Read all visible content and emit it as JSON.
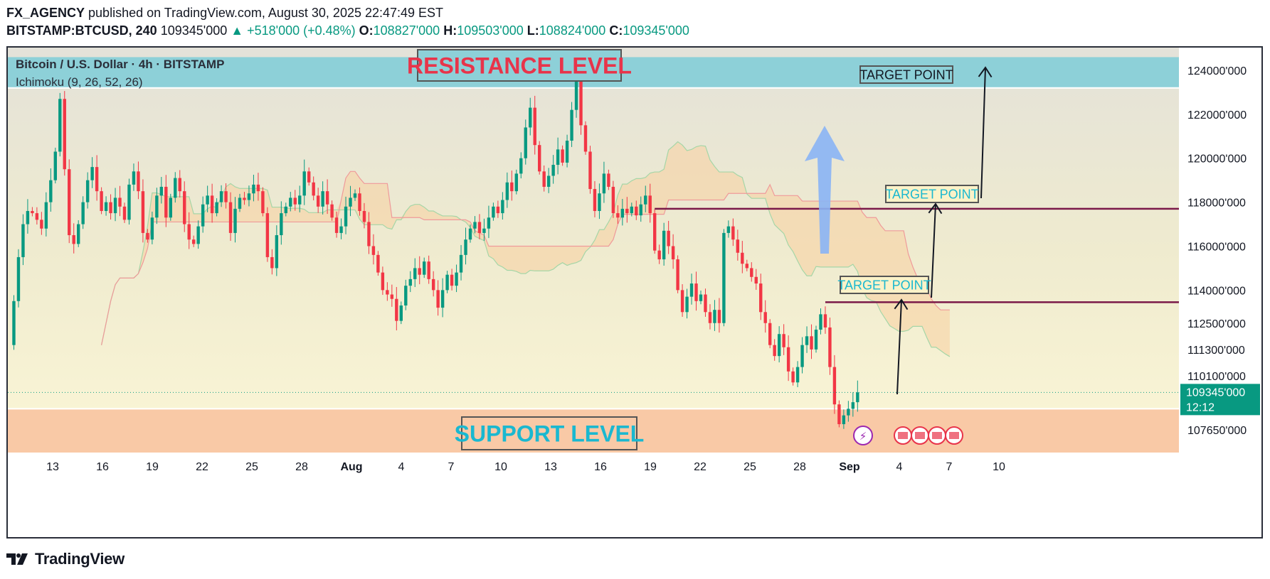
{
  "header": {
    "author": "FX_AGENCY",
    "published": " published on TradingView.com, August 30, 2025 22:47:49 EST",
    "symbol": "BITSTAMP:BTCUSD, 240",
    "last_price": "109345'000",
    "change": "▲ +518'000 (+0.48%)",
    "open_label": "O:",
    "open": "108827'000",
    "high_label": "H:",
    "high": "109503'000",
    "low_label": "L:",
    "low": "108824'000",
    "close_label": "C:",
    "close": "109345'000"
  },
  "legend": {
    "title": "Bitcoin / U.S. Dollar · 4h · BITSTAMP",
    "indicator": "Ichimoku (9, 26, 52, 26)"
  },
  "footer": {
    "brand": "TradingView"
  },
  "colors": {
    "up": "#089981",
    "down": "#f23645",
    "resistance_zone": "#8dd0d8",
    "support_zone": "#f9c9a6",
    "level_line": "#7a1848",
    "arrow_blue": "#8ab4f5",
    "price_tag": "#089981"
  },
  "chart_data": {
    "type": "candlestick",
    "symbol": "BITSTAMP:BTCUSD",
    "timeframe": "4h",
    "price_axis_ticks": [
      124000,
      122000,
      120000,
      118000,
      116000,
      114000,
      112500,
      111300,
      110100,
      107650
    ],
    "price_axis_labels": [
      "124000'000",
      "122000'000",
      "120000'000",
      "118000'000",
      "116000'000",
      "114000'000",
      "112500'000",
      "111300'000",
      "110100'000",
      "107650'000"
    ],
    "time_axis_labels": [
      "13",
      "16",
      "19",
      "22",
      "25",
      "28",
      "Aug",
      "4",
      "7",
      "10",
      "13",
      "16",
      "19",
      "22",
      "25",
      "28",
      "Sep",
      "4",
      "7",
      "10"
    ],
    "current_price_label": "109345'000",
    "countdown": "12:12",
    "price_path": [
      [
        0,
        111500
      ],
      [
        1,
        113500
      ],
      [
        2,
        115500
      ],
      [
        3,
        117000
      ],
      [
        4,
        117600
      ],
      [
        5,
        117500
      ],
      [
        6,
        117200
      ],
      [
        7,
        116800
      ],
      [
        8,
        118000
      ],
      [
        9,
        119000
      ],
      [
        10,
        120300
      ],
      [
        11,
        122700
      ],
      [
        12,
        119500
      ],
      [
        13,
        116500
      ],
      [
        14,
        116100
      ],
      [
        15,
        117000
      ],
      [
        16,
        118000
      ],
      [
        17,
        119000
      ],
      [
        18,
        119600
      ],
      [
        19,
        118500
      ],
      [
        20,
        117600
      ],
      [
        21,
        118000
      ],
      [
        22,
        117500
      ],
      [
        23,
        118200
      ],
      [
        24,
        117800
      ],
      [
        25,
        117200
      ],
      [
        26,
        118800
      ],
      [
        27,
        119400
      ],
      [
        28,
        118500
      ],
      [
        29,
        116600
      ],
      [
        30,
        116300
      ],
      [
        31,
        117300
      ],
      [
        32,
        118300
      ],
      [
        33,
        118700
      ],
      [
        34,
        117300
      ],
      [
        35,
        118200
      ],
      [
        36,
        119100
      ],
      [
        37,
        118500
      ],
      [
        38,
        117000
      ],
      [
        39,
        116300
      ],
      [
        40,
        116100
      ],
      [
        41,
        116900
      ],
      [
        42,
        117900
      ],
      [
        43,
        118300
      ],
      [
        44,
        117500
      ],
      [
        45,
        118000
      ],
      [
        46,
        118500
      ],
      [
        47,
        118000
      ],
      [
        48,
        116600
      ],
      [
        49,
        117700
      ],
      [
        50,
        118200
      ],
      [
        51,
        118100
      ],
      [
        52,
        118400
      ],
      [
        53,
        118800
      ],
      [
        54,
        118500
      ],
      [
        55,
        117500
      ],
      [
        56,
        115500
      ],
      [
        57,
        115000
      ],
      [
        58,
        116500
      ],
      [
        59,
        117500
      ],
      [
        60,
        117800
      ],
      [
        61,
        118200
      ],
      [
        62,
        117900
      ],
      [
        63,
        118300
      ],
      [
        64,
        119400
      ],
      [
        65,
        118900
      ],
      [
        66,
        118300
      ],
      [
        67,
        117800
      ],
      [
        68,
        118500
      ],
      [
        69,
        117900
      ],
      [
        70,
        117300
      ],
      [
        71,
        116600
      ],
      [
        72,
        116900
      ],
      [
        73,
        117800
      ],
      [
        74,
        118200
      ],
      [
        75,
        118400
      ],
      [
        76,
        117600
      ],
      [
        77,
        117100
      ],
      [
        78,
        116000
      ],
      [
        79,
        115600
      ],
      [
        80,
        114800
      ],
      [
        81,
        114000
      ],
      [
        82,
        113800
      ],
      [
        83,
        113600
      ],
      [
        84,
        112600
      ],
      [
        85,
        113300
      ],
      [
        86,
        114200
      ],
      [
        87,
        114500
      ],
      [
        88,
        115000
      ],
      [
        89,
        114700
      ],
      [
        90,
        115300
      ],
      [
        91,
        114500
      ],
      [
        92,
        114000
      ],
      [
        93,
        113200
      ],
      [
        94,
        114000
      ],
      [
        95,
        114700
      ],
      [
        96,
        114200
      ],
      [
        97,
        114800
      ],
      [
        98,
        115600
      ],
      [
        99,
        116300
      ],
      [
        100,
        116800
      ],
      [
        101,
        117100
      ],
      [
        102,
        116600
      ],
      [
        103,
        116800
      ],
      [
        104,
        117300
      ],
      [
        105,
        117800
      ],
      [
        106,
        117500
      ],
      [
        107,
        118100
      ],
      [
        108,
        118900
      ],
      [
        109,
        118500
      ],
      [
        110,
        119300
      ],
      [
        111,
        120000
      ],
      [
        112,
        121400
      ],
      [
        113,
        122300
      ],
      [
        114,
        120600
      ],
      [
        115,
        119400
      ],
      [
        116,
        118700
      ],
      [
        117,
        119200
      ],
      [
        118,
        119700
      ],
      [
        119,
        120400
      ],
      [
        120,
        119800
      ],
      [
        121,
        120800
      ],
      [
        122,
        122200
      ],
      [
        123,
        123600
      ],
      [
        124,
        121500
      ],
      [
        125,
        120300
      ],
      [
        126,
        118600
      ],
      [
        127,
        117600
      ],
      [
        128,
        118400
      ],
      [
        129,
        119300
      ],
      [
        130,
        118700
      ],
      [
        131,
        117500
      ],
      [
        132,
        117300
      ],
      [
        133,
        117700
      ],
      [
        134,
        117500
      ],
      [
        135,
        117800
      ],
      [
        136,
        117400
      ],
      [
        137,
        117900
      ],
      [
        138,
        118300
      ],
      [
        139,
        117500
      ],
      [
        140,
        115800
      ],
      [
        141,
        115400
      ],
      [
        142,
        116700
      ],
      [
        143,
        116000
      ],
      [
        144,
        115400
      ],
      [
        145,
        114000
      ],
      [
        146,
        113000
      ],
      [
        147,
        113700
      ],
      [
        148,
        114300
      ],
      [
        149,
        113500
      ],
      [
        150,
        113800
      ],
      [
        151,
        113000
      ],
      [
        152,
        112500
      ],
      [
        153,
        113100
      ],
      [
        154,
        112500
      ],
      [
        155,
        116600
      ],
      [
        156,
        116900
      ],
      [
        157,
        116300
      ],
      [
        158,
        115700
      ],
      [
        159,
        115200
      ],
      [
        160,
        115000
      ],
      [
        161,
        114600
      ],
      [
        162,
        114300
      ],
      [
        163,
        113000
      ],
      [
        164,
        112500
      ],
      [
        165,
        111500
      ],
      [
        166,
        111000
      ],
      [
        167,
        112000
      ],
      [
        168,
        111400
      ],
      [
        169,
        110300
      ],
      [
        170,
        109800
      ],
      [
        171,
        110500
      ],
      [
        172,
        111500
      ],
      [
        173,
        111900
      ],
      [
        174,
        111300
      ],
      [
        175,
        112200
      ],
      [
        176,
        112900
      ],
      [
        177,
        112300
      ],
      [
        178,
        110500
      ],
      [
        179,
        108800
      ],
      [
        180,
        107900
      ],
      [
        181,
        108300
      ],
      [
        182,
        108600
      ],
      [
        183,
        108900
      ],
      [
        184,
        109345
      ]
    ],
    "zones": [
      {
        "label": "RESISTANCE LEVEL",
        "from": 123200,
        "to": 124600
      },
      {
        "label": "SUPPORT LEVEL",
        "from": 106800,
        "to": 108600
      }
    ],
    "levels": [
      {
        "price": 117700,
        "from_bar": 140
      },
      {
        "price": 113450,
        "from_bar": 177
      }
    ],
    "annotations": [
      "TARGET POINT",
      "TARGET POINT",
      "TARGET POINT"
    ]
  }
}
